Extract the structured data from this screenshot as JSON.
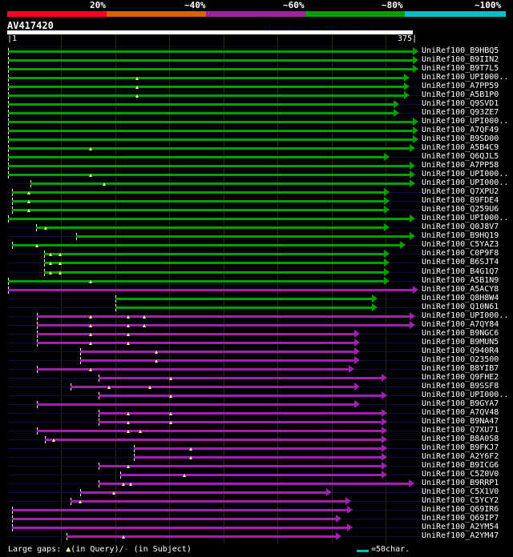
{
  "header": {
    "scale_labels": [
      "20%",
      "~40%",
      "~60%",
      "~80%",
      "~100%"
    ],
    "scale_colors": [
      "#ff0020",
      "#e06000",
      "#a020a0",
      "#00a000",
      "#00c0c8"
    ],
    "title": "AV417420",
    "version": "AlignView.pm Beta rel.7",
    "query_start": "1",
    "query_end": "375"
  },
  "colors": {
    "green": "#00a000",
    "magenta": "#a020b0"
  },
  "rows": [
    {
      "label": "UniRef100_B9HBQ5",
      "start": 1,
      "end": 375,
      "color": "green",
      "gaps": []
    },
    {
      "label": "UniRef100_B9IIN2",
      "start": 1,
      "end": 375,
      "color": "green",
      "gaps": []
    },
    {
      "label": "UniRef100_B9T7L5",
      "start": 1,
      "end": 375,
      "color": "green",
      "gaps": []
    },
    {
      "label": "UniRef100_UPI000..",
      "start": 1,
      "end": 367,
      "color": "green",
      "gaps": [
        120
      ]
    },
    {
      "label": "UniRef100_A7PP59",
      "start": 1,
      "end": 367,
      "color": "green",
      "gaps": [
        120
      ]
    },
    {
      "label": "UniRef100_A5B1P0",
      "start": 1,
      "end": 367,
      "color": "green",
      "gaps": [
        120
      ]
    },
    {
      "label": "UniRef100_Q9SVD1",
      "start": 1,
      "end": 357,
      "color": "green",
      "gaps": []
    },
    {
      "label": "UniRef100_Q93ZE7",
      "start": 1,
      "end": 357,
      "color": "green",
      "gaps": []
    },
    {
      "label": "UniRef100_UPI000..",
      "start": 1,
      "end": 375,
      "color": "green",
      "gaps": []
    },
    {
      "label": "UniRef100_A7QF49",
      "start": 1,
      "end": 375,
      "color": "green",
      "gaps": []
    },
    {
      "label": "UniRef100_B9SD00",
      "start": 1,
      "end": 375,
      "color": "green",
      "gaps": []
    },
    {
      "label": "UniRef100_A5B4C9",
      "start": 1,
      "end": 372,
      "color": "green",
      "gaps": [
        77
      ]
    },
    {
      "label": "UniRef100_Q6QJL5",
      "start": 1,
      "end": 348,
      "color": "green",
      "gaps": []
    },
    {
      "label": "UniRef100_A7PP58",
      "start": 1,
      "end": 372,
      "color": "green",
      "gaps": []
    },
    {
      "label": "UniRef100_UPI000..",
      "start": 1,
      "end": 372,
      "color": "green",
      "gaps": [
        77
      ]
    },
    {
      "label": "UniRef100_UPI000..",
      "start": 22,
      "end": 372,
      "color": "green",
      "gaps": [
        90
      ]
    },
    {
      "label": "UniRef100_Q7XPU2",
      "start": 5,
      "end": 348,
      "color": "green",
      "gaps": [
        20
      ]
    },
    {
      "label": "UniRef100_B9FDE4",
      "start": 5,
      "end": 348,
      "color": "green",
      "gaps": [
        20
      ]
    },
    {
      "label": "UniRef100_Q259U6",
      "start": 5,
      "end": 348,
      "color": "green",
      "gaps": [
        20
      ]
    },
    {
      "label": "UniRef100_UPI000..",
      "start": 1,
      "end": 372,
      "color": "green",
      "gaps": []
    },
    {
      "label": "UniRef100_Q0J8V7",
      "start": 27,
      "end": 348,
      "color": "green",
      "gaps": [
        36
      ]
    },
    {
      "label": "UniRef100_B9HQ19",
      "start": 64,
      "end": 372,
      "color": "green",
      "gaps": []
    },
    {
      "label": "UniRef100_C5YAZ3",
      "start": 5,
      "end": 363,
      "color": "green",
      "gaps": [
        28
      ]
    },
    {
      "label": "UniRef100_C0P9F8",
      "start": 34,
      "end": 348,
      "color": "green",
      "gaps": [
        40,
        49
      ]
    },
    {
      "label": "UniRef100_B6SJT4",
      "start": 34,
      "end": 348,
      "color": "green",
      "gaps": [
        40,
        49
      ]
    },
    {
      "label": "UniRef100_B4G1Q7",
      "start": 34,
      "end": 348,
      "color": "green",
      "gaps": [
        40,
        49
      ]
    },
    {
      "label": "UniRef100_A5B1N9",
      "start": 1,
      "end": 348,
      "color": "green",
      "gaps": [
        77
      ]
    },
    {
      "label": "UniRef100_A5ACY8",
      "start": 1,
      "end": 375,
      "color": "magenta",
      "gaps": []
    },
    {
      "label": "UniRef100_Q8H8W4",
      "start": 100,
      "end": 337,
      "color": "green",
      "gaps": []
    },
    {
      "label": "UniRef100_Q10N61",
      "start": 100,
      "end": 337,
      "color": "green",
      "gaps": []
    },
    {
      "label": "UniRef100_UPI000..",
      "start": 28,
      "end": 372,
      "color": "magenta",
      "gaps": [
        77,
        112,
        127
      ]
    },
    {
      "label": "UniRef100_A7QY84",
      "start": 28,
      "end": 372,
      "color": "magenta",
      "gaps": [
        77,
        112,
        127
      ]
    },
    {
      "label": "UniRef100_B9NGC6",
      "start": 28,
      "end": 321,
      "color": "magenta",
      "gaps": [
        77,
        112
      ]
    },
    {
      "label": "UniRef100_B9MUN5",
      "start": 28,
      "end": 321,
      "color": "magenta",
      "gaps": [
        77,
        112
      ]
    },
    {
      "label": "UniRef100_Q940R4",
      "start": 68,
      "end": 321,
      "color": "magenta",
      "gaps": [
        138
      ]
    },
    {
      "label": "UniRef100_O23500",
      "start": 68,
      "end": 321,
      "color": "magenta",
      "gaps": [
        138
      ]
    },
    {
      "label": "UniRef100_B8YIB7",
      "start": 28,
      "end": 316,
      "color": "magenta",
      "gaps": [
        77
      ]
    },
    {
      "label": "UniRef100_Q9FHE2",
      "start": 85,
      "end": 346,
      "color": "magenta",
      "gaps": [
        151
      ]
    },
    {
      "label": "UniRef100_B9SSF8",
      "start": 59,
      "end": 321,
      "color": "magenta",
      "gaps": [
        94,
        132
      ]
    },
    {
      "label": "UniRef100_UPI000..",
      "start": 85,
      "end": 346,
      "color": "magenta",
      "gaps": [
        151
      ]
    },
    {
      "label": "UniRef100_B9GYA7",
      "start": 28,
      "end": 321,
      "color": "magenta",
      "gaps": []
    },
    {
      "label": "UniRef100_A7QV48",
      "start": 85,
      "end": 346,
      "color": "magenta",
      "gaps": [
        112,
        151
      ]
    },
    {
      "label": "UniRef100_B9NA47",
      "start": 85,
      "end": 346,
      "color": "magenta",
      "gaps": [
        112,
        151
      ]
    },
    {
      "label": "UniRef100_Q7XU71",
      "start": 28,
      "end": 346,
      "color": "magenta",
      "gaps": [
        112,
        123
      ]
    },
    {
      "label": "UniRef100_B8A0S8",
      "start": 35,
      "end": 346,
      "color": "magenta",
      "gaps": [
        43
      ]
    },
    {
      "label": "UniRef100_B9FKJ7",
      "start": 117,
      "end": 346,
      "color": "magenta",
      "gaps": [
        170
      ]
    },
    {
      "label": "UniRef100_A2Y6F2",
      "start": 117,
      "end": 346,
      "color": "magenta",
      "gaps": [
        170
      ]
    },
    {
      "label": "UniRef100_B9ICG6",
      "start": 85,
      "end": 346,
      "color": "magenta",
      "gaps": [
        112
      ]
    },
    {
      "label": "UniRef100_C5Z0V0",
      "start": 105,
      "end": 346,
      "color": "magenta",
      "gaps": [
        164
      ]
    },
    {
      "label": "UniRef100_B9RRP1",
      "start": 85,
      "end": 371,
      "color": "magenta",
      "gaps": [
        108,
        114
      ]
    },
    {
      "label": "UniRef100_C5X1V0",
      "start": 68,
      "end": 295,
      "color": "magenta",
      "gaps": [
        99
      ]
    },
    {
      "label": "UniRef100_C5YCY2",
      "start": 59,
      "end": 313,
      "color": "magenta",
      "gaps": [
        68
      ]
    },
    {
      "label": "UniRef100_Q69IR6",
      "start": 5,
      "end": 314,
      "color": "magenta",
      "gaps": []
    },
    {
      "label": "UniRef100_Q69IP7",
      "start": 5,
      "end": 304,
      "color": "magenta",
      "gaps": []
    },
    {
      "label": "UniRef100_A2YM54",
      "start": 5,
      "end": 314,
      "color": "magenta",
      "gaps": []
    },
    {
      "label": "UniRef100_A2YM47",
      "start": 55,
      "end": 304,
      "color": "magenta",
      "gaps": [
        108
      ]
    }
  ],
  "footer": {
    "gaps_label": "Large gaps:",
    "query_label": "(in Query)/",
    "subject_label": "(in Subject)",
    "scale_label": "=50char."
  }
}
